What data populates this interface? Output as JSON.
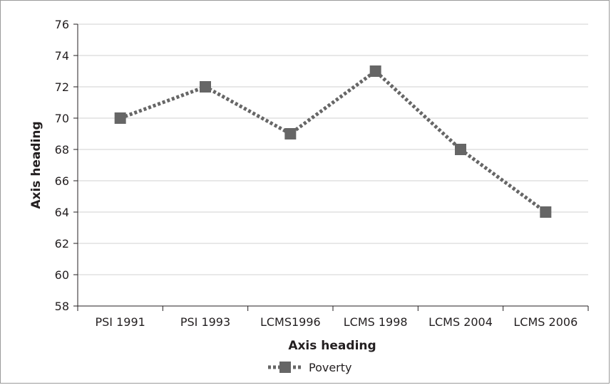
{
  "chart_data": {
    "type": "line",
    "categories": [
      "PSI 1991",
      "PSI 1993",
      "LCMS1996",
      "LCMS 1998",
      "LCMS 2004",
      "LCMS 2006"
    ],
    "series": [
      {
        "name": "Poverty",
        "values": [
          70,
          72,
          69,
          73,
          68,
          64
        ],
        "color": "#666666",
        "line_style": "dotted",
        "marker": "square"
      }
    ],
    "xlabel": "Axis heading",
    "ylabel": "Axis heading",
    "ylim": [
      58,
      76
    ],
    "yticks": [
      58,
      60,
      62,
      64,
      66,
      68,
      70,
      72,
      74,
      76
    ],
    "grid": true,
    "legend_position": "bottom"
  }
}
